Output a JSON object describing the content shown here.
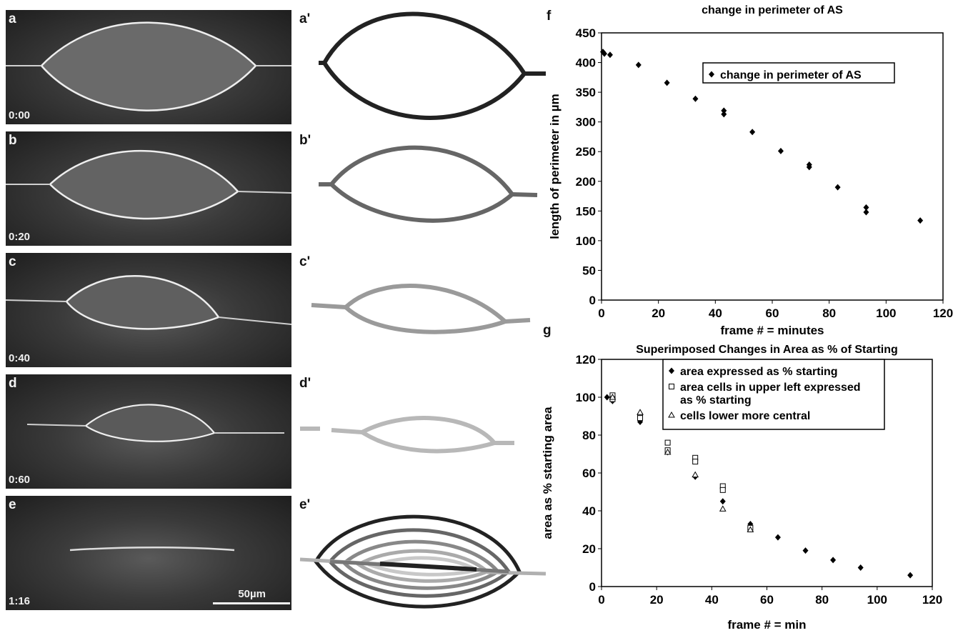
{
  "panels": {
    "micrographs": [
      {
        "label": "a",
        "time": "0:00"
      },
      {
        "label": "b",
        "time": "0:20"
      },
      {
        "label": "c",
        "time": "0:40"
      },
      {
        "label": "d",
        "time": "0:60"
      },
      {
        "label": "e",
        "time": "1:16"
      }
    ],
    "scale_bar": "50µm",
    "outlines": [
      {
        "label": "a'",
        "color": "#222222"
      },
      {
        "label": "b'",
        "color": "#666666"
      },
      {
        "label": "c'",
        "color": "#9a9a9a"
      },
      {
        "label": "d'",
        "color": "#b8b8b8"
      },
      {
        "label": "e'",
        "color": "#444444"
      }
    ],
    "f_label": "f",
    "g_label": "g"
  },
  "chart_data": [
    {
      "type": "scatter",
      "title": "change in perimeter of AS",
      "xlabel": "frame # = minutes",
      "ylabel": "length of perimeter in µm",
      "xlim": [
        0,
        120
      ],
      "ylim": [
        0,
        450
      ],
      "xticks": [
        "0",
        "20",
        "40",
        "60",
        "80",
        "100",
        "120"
      ],
      "yticks": [
        "0",
        "50",
        "100",
        "150",
        "200",
        "250",
        "300",
        "350",
        "400",
        "450"
      ],
      "legend_position": "top-right",
      "grid": false,
      "series": [
        {
          "name": "change in perimeter of AS",
          "marker": "diamond",
          "points": [
            [
              0.5,
              418
            ],
            [
              1,
              415
            ],
            [
              3,
              413
            ],
            [
              13,
              396
            ],
            [
              23,
              366
            ],
            [
              33,
              339
            ],
            [
              43,
              319
            ],
            [
              43,
              313
            ],
            [
              53,
              283
            ],
            [
              63,
              251
            ],
            [
              73,
              228
            ],
            [
              73,
              224
            ],
            [
              83,
              190
            ],
            [
              93,
              156
            ],
            [
              93,
              148
            ],
            [
              112,
              134
            ]
          ]
        }
      ]
    },
    {
      "type": "scatter",
      "title": "Superimposed Changes in Area as % of Starting",
      "xlabel": "frame # = min",
      "ylabel": "area as % starting area",
      "xlim": [
        0,
        120
      ],
      "ylim": [
        0,
        120
      ],
      "xticks": [
        "0",
        "20",
        "40",
        "60",
        "80",
        "100",
        "120"
      ],
      "yticks": [
        "0",
        "20",
        "40",
        "60",
        "80",
        "100",
        "120"
      ],
      "legend_position": "top-right",
      "grid": false,
      "series": [
        {
          "name": "area expressed as % starting",
          "marker": "diamond",
          "points": [
            [
              2,
              100
            ],
            [
              4,
              98
            ],
            [
              14,
              88
            ],
            [
              14,
              87
            ],
            [
              24,
              71
            ],
            [
              34,
              58
            ],
            [
              44,
              45
            ],
            [
              54,
              33
            ],
            [
              64,
              26
            ],
            [
              74,
              19
            ],
            [
              84,
              14
            ],
            [
              94,
              10
            ],
            [
              112,
              6
            ]
          ]
        },
        {
          "name": "area cells in upper left expressed as % starting",
          "marker": "square",
          "points": [
            [
              4,
              101
            ],
            [
              4,
              99
            ],
            [
              14,
              90
            ],
            [
              14,
              89
            ],
            [
              24,
              76
            ],
            [
              24,
              72
            ],
            [
              34,
              68
            ],
            [
              34,
              66
            ],
            [
              44,
              53
            ],
            [
              44,
              51
            ],
            [
              54,
              31
            ]
          ]
        },
        {
          "name": "cells lower more central",
          "marker": "triangle",
          "points": [
            [
              4,
              100
            ],
            [
              14,
              92
            ],
            [
              24,
              71
            ],
            [
              34,
              59
            ],
            [
              44,
              41
            ],
            [
              54,
              30
            ]
          ]
        }
      ]
    }
  ]
}
